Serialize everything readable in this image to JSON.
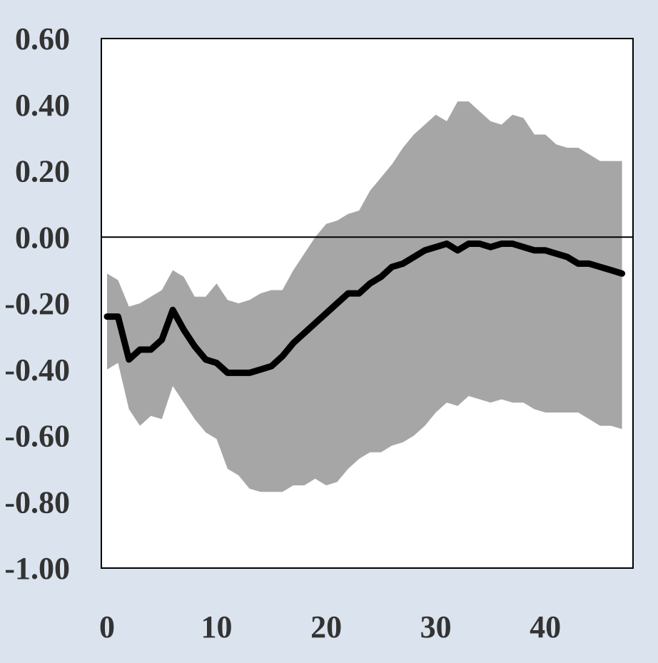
{
  "chart_data": {
    "type": "area",
    "title": "",
    "xlabel": "",
    "ylabel": "",
    "xlim": [
      0,
      48
    ],
    "ylim": [
      -1.0,
      0.6
    ],
    "x_ticks": [
      0,
      10,
      20,
      30,
      40
    ],
    "x_tick_labels": [
      "0",
      "10",
      "20",
      "30",
      "40"
    ],
    "y_ticks": [
      0.6,
      0.4,
      0.2,
      0.0,
      -0.2,
      -0.4,
      -0.6,
      -0.8,
      -1.0
    ],
    "y_tick_labels": [
      "0.60",
      "0.40",
      "0.20",
      "0.00",
      "-0.20",
      "-0.40",
      "-0.60",
      "-0.80",
      "-1.00"
    ],
    "zero_line": 0.0,
    "grid": false,
    "legend": "none",
    "colors": {
      "background": "#dbe3ee",
      "plot_area": "#ffffff",
      "band": "#a6a6a6",
      "line": "#000000",
      "text": "#333333"
    },
    "x": [
      0,
      1,
      2,
      3,
      4,
      5,
      6,
      7,
      8,
      9,
      10,
      11,
      12,
      13,
      14,
      15,
      16,
      17,
      18,
      19,
      20,
      21,
      22,
      23,
      24,
      25,
      26,
      27,
      28,
      29,
      30,
      31,
      32,
      33,
      34,
      35,
      36,
      37,
      38,
      39,
      40,
      41,
      42,
      43,
      44,
      45,
      46,
      47
    ],
    "series": [
      {
        "role": "upper_bound",
        "values": [
          -0.11,
          -0.13,
          -0.21,
          -0.2,
          -0.18,
          -0.16,
          -0.1,
          -0.12,
          -0.18,
          -0.18,
          -0.14,
          -0.19,
          -0.2,
          -0.19,
          -0.17,
          -0.16,
          -0.16,
          -0.1,
          -0.05,
          0.0,
          0.04,
          0.05,
          0.07,
          0.08,
          0.14,
          0.18,
          0.22,
          0.27,
          0.31,
          0.34,
          0.37,
          0.35,
          0.41,
          0.41,
          0.38,
          0.35,
          0.34,
          0.37,
          0.36,
          0.31,
          0.31,
          0.28,
          0.27,
          0.27,
          0.25,
          0.23,
          0.23,
          0.23
        ]
      },
      {
        "role": "lower_bound",
        "values": [
          -0.4,
          -0.38,
          -0.52,
          -0.57,
          -0.54,
          -0.55,
          -0.45,
          -0.5,
          -0.55,
          -0.59,
          -0.61,
          -0.7,
          -0.72,
          -0.76,
          -0.77,
          -0.77,
          -0.77,
          -0.75,
          -0.75,
          -0.73,
          -0.75,
          -0.74,
          -0.7,
          -0.67,
          -0.65,
          -0.65,
          -0.63,
          -0.62,
          -0.6,
          -0.57,
          -0.53,
          -0.5,
          -0.51,
          -0.48,
          -0.49,
          -0.5,
          -0.49,
          -0.5,
          -0.5,
          -0.52,
          -0.53,
          -0.53,
          -0.53,
          -0.53,
          -0.55,
          -0.57,
          -0.57,
          -0.58
        ]
      },
      {
        "role": "point_estimate",
        "values": [
          -0.24,
          -0.24,
          -0.37,
          -0.34,
          -0.34,
          -0.31,
          -0.22,
          -0.28,
          -0.33,
          -0.37,
          -0.38,
          -0.41,
          -0.41,
          -0.41,
          -0.4,
          -0.39,
          -0.36,
          -0.32,
          -0.29,
          -0.26,
          -0.23,
          -0.2,
          -0.17,
          -0.17,
          -0.14,
          -0.12,
          -0.09,
          -0.08,
          -0.06,
          -0.04,
          -0.03,
          -0.02,
          -0.04,
          -0.02,
          -0.02,
          -0.03,
          -0.02,
          -0.02,
          -0.03,
          -0.04,
          -0.04,
          -0.05,
          -0.06,
          -0.08,
          -0.08,
          -0.09,
          -0.1,
          -0.11
        ]
      }
    ]
  }
}
